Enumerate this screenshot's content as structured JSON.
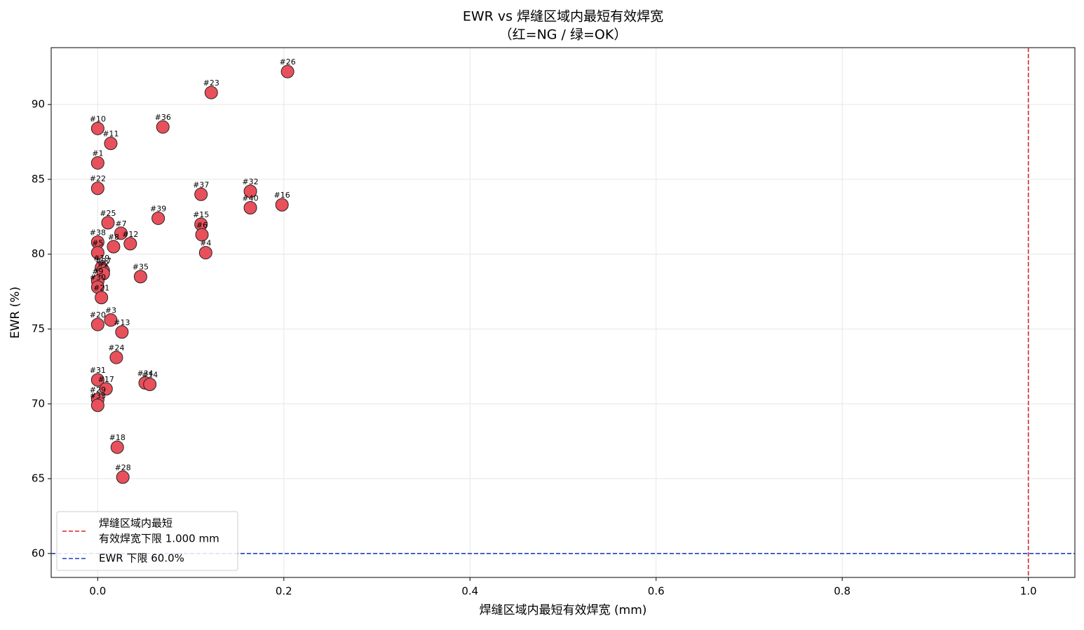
{
  "chart_data": {
    "type": "scatter",
    "title": [
      "EWR vs 焊缝区域内最短有效焊宽",
      "（红=NG / 绿=OK）"
    ],
    "x_label": "焊缝区域内最短有效焊宽 (mm)",
    "y_label": "EWR (%)",
    "point_labels": [
      "#26",
      "#23",
      "#10",
      "#36",
      "#11",
      "#1",
      "#22",
      "#37",
      "#32",
      "#40",
      "#16",
      "#39",
      "#25",
      "#15",
      "#6",
      "#7",
      "#12",
      "#38",
      "#8",
      "#5",
      "#4",
      "#35",
      "#19",
      "#27",
      "#2",
      "#9",
      "#30",
      "#21",
      "#20",
      "#3",
      "#13",
      "#24",
      "#31",
      "#34",
      "#14",
      "#17",
      "#29",
      "#33",
      "#18",
      "#28"
    ],
    "x": [
      0.204,
      0.122,
      0,
      0.07,
      0.014,
      0,
      0,
      0.111,
      0.164,
      0.164,
      0.198,
      0.065,
      0.011,
      0.111,
      0.112,
      0.025,
      0.035,
      0,
      0.017,
      0,
      0.116,
      0.046,
      0.004,
      0.006,
      0.006,
      0,
      0,
      0.004,
      0,
      0.014,
      0.026,
      0.02,
      0,
      0.051,
      0.056,
      0.009,
      0,
      0,
      0.021,
      0.027
    ],
    "values": [
      92.2,
      90.8,
      88.4,
      88.5,
      87.4,
      86.1,
      84.4,
      84.0,
      84.2,
      83.1,
      83.3,
      82.4,
      82.1,
      82.0,
      81.3,
      81.4,
      80.7,
      80.8,
      80.5,
      80.1,
      80.1,
      78.5,
      79.1,
      78.9,
      78.7,
      78.2,
      77.8,
      77.1,
      75.3,
      75.6,
      74.8,
      73.1,
      71.6,
      71.4,
      71.3,
      71.0,
      70.3,
      69.9,
      67.1,
      65.1
    ],
    "color": "#e8505b",
    "xlim": [
      -0.05,
      1.05
    ],
    "ylim": [
      58.4,
      93.8
    ],
    "xticks": [
      {
        "value": 0,
        "label": "0.0"
      },
      {
        "value": 0.2,
        "label": "0.2"
      },
      {
        "value": 0.4,
        "label": "0.4"
      },
      {
        "value": 0.6,
        "label": "0.6"
      },
      {
        "value": 0.8,
        "label": "0.8"
      },
      {
        "value": 1,
        "label": "1.0"
      }
    ],
    "yticks": [
      60,
      65,
      70,
      75,
      80,
      85,
      90
    ],
    "grid": true,
    "legend_position": "lower left",
    "reference_lines": [
      {
        "axis": "x",
        "value": 1.0,
        "color": "#d62728",
        "label": [
          "焊缝区域内最短",
          "有效焊宽下限 1.000 mm"
        ]
      },
      {
        "axis": "y",
        "value": 60.0,
        "color": "#1f3fbf",
        "label": [
          "EWR 下限 60.0%"
        ]
      }
    ]
  }
}
